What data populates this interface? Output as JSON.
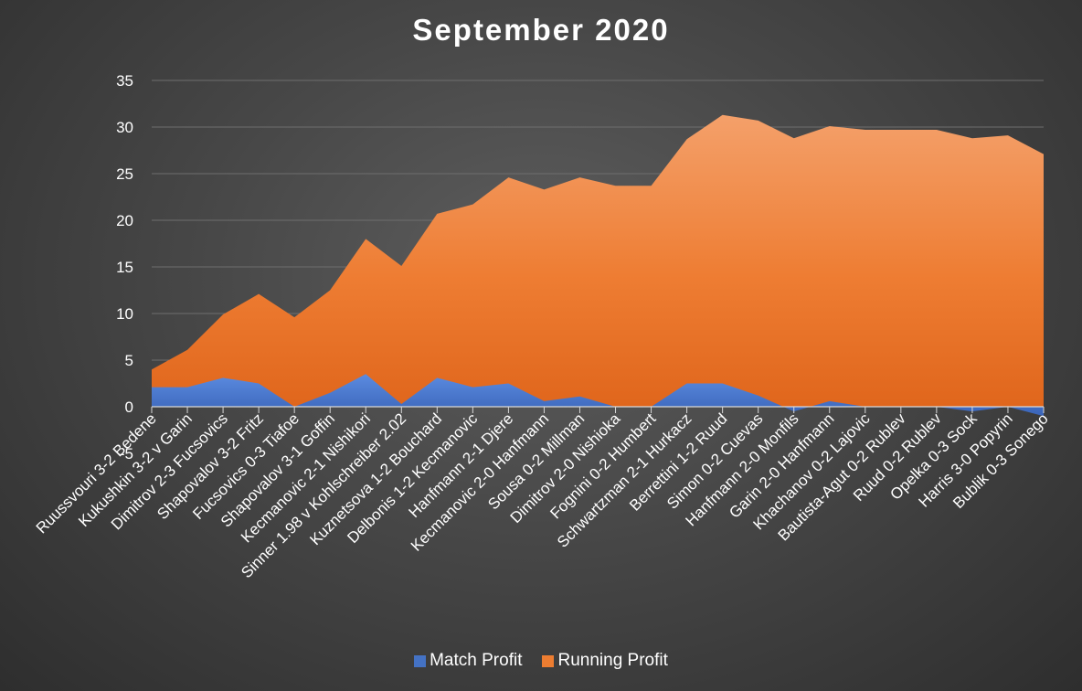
{
  "chart_data": {
    "type": "area",
    "title": "September 2020",
    "xlabel": "",
    "ylabel": "",
    "ylim": [
      -5,
      35
    ],
    "yticks": [
      35,
      30,
      25,
      20,
      15,
      10,
      5,
      0,
      -5
    ],
    "grid": true,
    "legend_position": "bottom",
    "categories": [
      "Ruussvouri 3-2 Bedene",
      "Kukushkin 3-2 v Garin",
      "Dimitrov 2-3 Fucsovics",
      "Shapovalov 3-2 Fritz",
      "Fucsovics 0-3 Tiafoe",
      "Shapovalov 3-1 Goffin",
      "Kecmanovic 2-1 Nishikori",
      "Sinner 1.98  v Kohlschreiber 2.02",
      "Kuznetsova 1-2 Bouchard",
      "Delbonis 1-2 Kecmanovic",
      "Hanfmann 2-1 Djere",
      "Kecmanovic 2-0 Hanfmann",
      "Sousa 0-2 Millman",
      "Dimitrov 2-0 Nishioka",
      "Fognini 0-2 Humbert",
      "Schwartzman 2-1 Hurkacz",
      "Berrettini 1-2 Ruud",
      "Simon 0-2 Cuevas",
      "Hanfmann 2-0 Monfils",
      "Garin 2-0 Hanfmann",
      "Khachanov 0-2 Lajovic",
      "Bautista-Agut 0-2 Rublev",
      "Ruud 0-2 Rublev",
      "Opelka 0-3 Sock",
      "Harris 3-0 Popyrin",
      "Bublik 0-3 Sonego"
    ],
    "series": [
      {
        "name": "Match Profit",
        "color": "#4472c4",
        "values": [
          2.1,
          2.1,
          3.1,
          2.5,
          0.0,
          1.5,
          3.5,
          0.3,
          3.1,
          2.1,
          2.5,
          0.6,
          1.1,
          0.0,
          0.0,
          2.5,
          2.5,
          1.2,
          -0.5,
          0.6,
          0.0,
          0.0,
          0.0,
          -0.5,
          0.0,
          -1.0
        ]
      },
      {
        "name": "Running Profit",
        "color": "#ed7d31",
        "values": [
          4.0,
          6.1,
          9.9,
          12.1,
          9.6,
          12.5,
          18.0,
          15.1,
          20.7,
          21.7,
          24.6,
          23.3,
          24.6,
          23.7,
          23.7,
          28.7,
          31.3,
          30.7,
          28.8,
          30.1,
          29.7,
          29.7,
          29.7,
          28.8,
          29.1,
          27.1
        ]
      }
    ]
  }
}
